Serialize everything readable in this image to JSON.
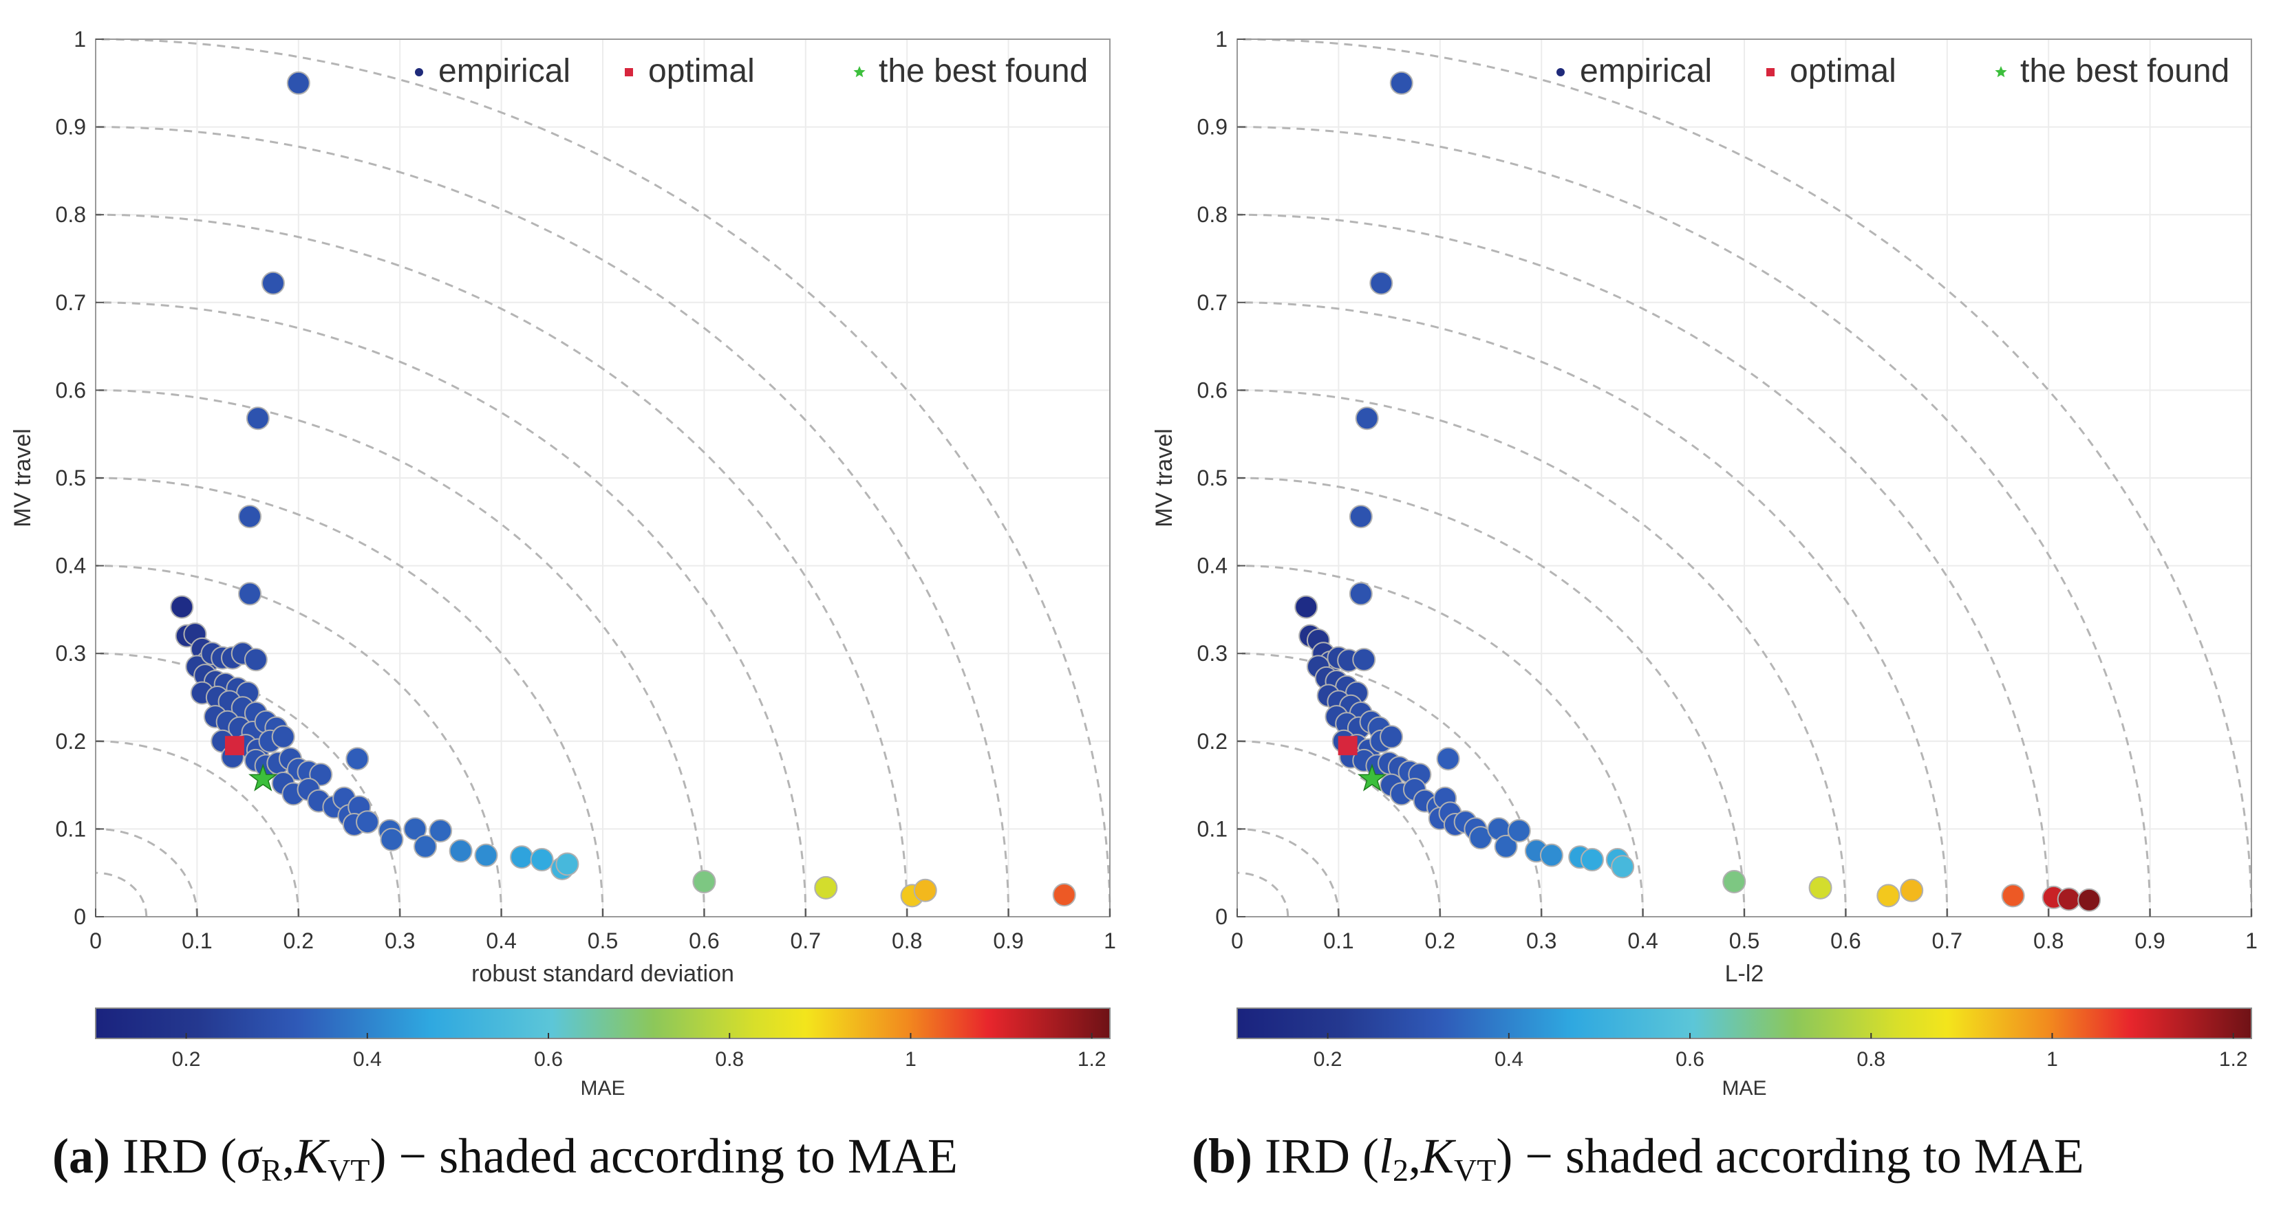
{
  "chart_data": [
    {
      "type": "scatter",
      "title": "",
      "xlabel": "robust standard deviation",
      "ylabel": "MV travel",
      "xlim": [
        0,
        1
      ],
      "ylim": [
        0,
        1
      ],
      "xticks": [
        "0",
        "0.1",
        "0.2",
        "0.3",
        "0.4",
        "0.5",
        "0.6",
        "0.7",
        "0.8",
        "0.9",
        "1"
      ],
      "yticks": [
        "0",
        "0.1",
        "0.2",
        "0.3",
        "0.4",
        "0.5",
        "0.6",
        "0.7",
        "0.8",
        "0.9",
        "1"
      ],
      "grid": true,
      "reference_arcs": [
        0.05,
        0.1,
        0.2,
        0.3,
        0.4,
        0.5,
        0.6,
        0.7,
        0.8,
        0.9,
        1.0
      ],
      "legend": {
        "position": "top-right",
        "entries": [
          {
            "label": "empirical",
            "marker": "circle",
            "color": "#1f2a7a"
          },
          {
            "label": "optimal",
            "marker": "square",
            "color": "#d7263d"
          },
          {
            "label": "the best found",
            "marker": "star",
            "color": "#3cbf3c"
          }
        ]
      },
      "series": [
        {
          "name": "empirical",
          "points": [
            {
              "x": 0.2,
              "y": 0.95,
              "mae": 0.3
            },
            {
              "x": 0.175,
              "y": 0.722,
              "mae": 0.3
            },
            {
              "x": 0.16,
              "y": 0.568,
              "mae": 0.3
            },
            {
              "x": 0.152,
              "y": 0.456,
              "mae": 0.3
            },
            {
              "x": 0.152,
              "y": 0.368,
              "mae": 0.3
            },
            {
              "x": 0.085,
              "y": 0.353,
              "mae": 0.15
            },
            {
              "x": 0.09,
              "y": 0.32,
              "mae": 0.18
            },
            {
              "x": 0.098,
              "y": 0.322,
              "mae": 0.2
            },
            {
              "x": 0.105,
              "y": 0.305,
              "mae": 0.22
            },
            {
              "x": 0.11,
              "y": 0.29,
              "mae": 0.24
            },
            {
              "x": 0.1,
              "y": 0.285,
              "mae": 0.24
            },
            {
              "x": 0.115,
              "y": 0.3,
              "mae": 0.25
            },
            {
              "x": 0.125,
              "y": 0.295,
              "mae": 0.26
            },
            {
              "x": 0.135,
              "y": 0.295,
              "mae": 0.26
            },
            {
              "x": 0.145,
              "y": 0.3,
              "mae": 0.27
            },
            {
              "x": 0.158,
              "y": 0.293,
              "mae": 0.28
            },
            {
              "x": 0.108,
              "y": 0.275,
              "mae": 0.24
            },
            {
              "x": 0.118,
              "y": 0.268,
              "mae": 0.25
            },
            {
              "x": 0.128,
              "y": 0.265,
              "mae": 0.26
            },
            {
              "x": 0.14,
              "y": 0.26,
              "mae": 0.27
            },
            {
              "x": 0.15,
              "y": 0.255,
              "mae": 0.28
            },
            {
              "x": 0.105,
              "y": 0.255,
              "mae": 0.25
            },
            {
              "x": 0.12,
              "y": 0.25,
              "mae": 0.26
            },
            {
              "x": 0.132,
              "y": 0.245,
              "mae": 0.27
            },
            {
              "x": 0.145,
              "y": 0.238,
              "mae": 0.28
            },
            {
              "x": 0.158,
              "y": 0.232,
              "mae": 0.29
            },
            {
              "x": 0.118,
              "y": 0.228,
              "mae": 0.27
            },
            {
              "x": 0.13,
              "y": 0.222,
              "mae": 0.28
            },
            {
              "x": 0.142,
              "y": 0.215,
              "mae": 0.28
            },
            {
              "x": 0.155,
              "y": 0.21,
              "mae": 0.29
            },
            {
              "x": 0.168,
              "y": 0.222,
              "mae": 0.3
            },
            {
              "x": 0.178,
              "y": 0.215,
              "mae": 0.3
            },
            {
              "x": 0.125,
              "y": 0.2,
              "mae": 0.28
            },
            {
              "x": 0.148,
              "y": 0.195,
              "mae": 0.29
            },
            {
              "x": 0.16,
              "y": 0.19,
              "mae": 0.29
            },
            {
              "x": 0.172,
              "y": 0.2,
              "mae": 0.3
            },
            {
              "x": 0.185,
              "y": 0.205,
              "mae": 0.3
            },
            {
              "x": 0.135,
              "y": 0.182,
              "mae": 0.29
            },
            {
              "x": 0.158,
              "y": 0.178,
              "mae": 0.3
            },
            {
              "x": 0.168,
              "y": 0.172,
              "mae": 0.3
            },
            {
              "x": 0.18,
              "y": 0.175,
              "mae": 0.3
            },
            {
              "x": 0.192,
              "y": 0.18,
              "mae": 0.3
            },
            {
              "x": 0.2,
              "y": 0.168,
              "mae": 0.31
            },
            {
              "x": 0.21,
              "y": 0.165,
              "mae": 0.31
            },
            {
              "x": 0.222,
              "y": 0.162,
              "mae": 0.31
            },
            {
              "x": 0.185,
              "y": 0.152,
              "mae": 0.3
            },
            {
              "x": 0.195,
              "y": 0.14,
              "mae": 0.31
            },
            {
              "x": 0.21,
              "y": 0.145,
              "mae": 0.31
            },
            {
              "x": 0.22,
              "y": 0.132,
              "mae": 0.31
            },
            {
              "x": 0.235,
              "y": 0.125,
              "mae": 0.32
            },
            {
              "x": 0.245,
              "y": 0.135,
              "mae": 0.32
            },
            {
              "x": 0.25,
              "y": 0.115,
              "mae": 0.32
            },
            {
              "x": 0.26,
              "y": 0.125,
              "mae": 0.32
            },
            {
              "x": 0.255,
              "y": 0.105,
              "mae": 0.32
            },
            {
              "x": 0.268,
              "y": 0.108,
              "mae": 0.33
            },
            {
              "x": 0.258,
              "y": 0.18,
              "mae": 0.33
            },
            {
              "x": 0.29,
              "y": 0.098,
              "mae": 0.34
            },
            {
              "x": 0.292,
              "y": 0.088,
              "mae": 0.34
            },
            {
              "x": 0.315,
              "y": 0.1,
              "mae": 0.34
            },
            {
              "x": 0.325,
              "y": 0.08,
              "mae": 0.35
            },
            {
              "x": 0.34,
              "y": 0.098,
              "mae": 0.35
            },
            {
              "x": 0.36,
              "y": 0.075,
              "mae": 0.4
            },
            {
              "x": 0.385,
              "y": 0.07,
              "mae": 0.42
            },
            {
              "x": 0.42,
              "y": 0.068,
              "mae": 0.46
            },
            {
              "x": 0.44,
              "y": 0.065,
              "mae": 0.48
            },
            {
              "x": 0.46,
              "y": 0.055,
              "mae": 0.52
            },
            {
              "x": 0.465,
              "y": 0.06,
              "mae": 0.54
            },
            {
              "x": 0.6,
              "y": 0.04,
              "mae": 0.68
            },
            {
              "x": 0.72,
              "y": 0.033,
              "mae": 0.82
            },
            {
              "x": 0.805,
              "y": 0.024,
              "mae": 0.92
            },
            {
              "x": 0.818,
              "y": 0.03,
              "mae": 0.94
            },
            {
              "x": 0.955,
              "y": 0.025,
              "mae": 1.04
            }
          ]
        },
        {
          "name": "optimal",
          "points": [
            {
              "x": 0.137,
              "y": 0.195
            }
          ]
        },
        {
          "name": "the best found",
          "points": [
            {
              "x": 0.165,
              "y": 0.157
            }
          ]
        }
      ],
      "colorbar": {
        "label": "MAE",
        "range": [
          0.1,
          1.22
        ],
        "ticks": [
          "0.2",
          "0.4",
          "0.6",
          "0.8",
          "1",
          "1.2"
        ],
        "colormap": "jet"
      },
      "caption": {
        "label": "(a)",
        "text_before": " IRD (",
        "var1": "σ",
        "var1_sub": "R",
        "sep": ",",
        "var2": "K",
        "var2_sub": "VT",
        "text_after": ") − shaded according to MAE"
      }
    },
    {
      "type": "scatter",
      "title": "",
      "xlabel": "L-l2",
      "ylabel": "MV travel",
      "xlim": [
        0,
        1
      ],
      "ylim": [
        0,
        1
      ],
      "xticks": [
        "0",
        "0.1",
        "0.2",
        "0.3",
        "0.4",
        "0.5",
        "0.6",
        "0.7",
        "0.8",
        "0.9",
        "1"
      ],
      "yticks": [
        "0",
        "0.1",
        "0.2",
        "0.3",
        "0.4",
        "0.5",
        "0.6",
        "0.7",
        "0.8",
        "0.9",
        "1"
      ],
      "grid": true,
      "reference_arcs": [
        0.05,
        0.1,
        0.2,
        0.3,
        0.4,
        0.5,
        0.6,
        0.7,
        0.8,
        0.9,
        1.0
      ],
      "legend": {
        "position": "top-right",
        "entries": [
          {
            "label": "empirical",
            "marker": "circle",
            "color": "#1f2a7a"
          },
          {
            "label": "optimal",
            "marker": "square",
            "color": "#d7263d"
          },
          {
            "label": "the best found",
            "marker": "star",
            "color": "#3cbf3c"
          }
        ]
      },
      "series": [
        {
          "name": "empirical",
          "points": [
            {
              "x": 0.162,
              "y": 0.95,
              "mae": 0.3
            },
            {
              "x": 0.142,
              "y": 0.722,
              "mae": 0.3
            },
            {
              "x": 0.128,
              "y": 0.568,
              "mae": 0.3
            },
            {
              "x": 0.122,
              "y": 0.456,
              "mae": 0.3
            },
            {
              "x": 0.122,
              "y": 0.368,
              "mae": 0.3
            },
            {
              "x": 0.068,
              "y": 0.353,
              "mae": 0.15
            },
            {
              "x": 0.072,
              "y": 0.32,
              "mae": 0.18
            },
            {
              "x": 0.08,
              "y": 0.315,
              "mae": 0.2
            },
            {
              "x": 0.085,
              "y": 0.3,
              "mae": 0.22
            },
            {
              "x": 0.092,
              "y": 0.29,
              "mae": 0.24
            },
            {
              "x": 0.08,
              "y": 0.285,
              "mae": 0.24
            },
            {
              "x": 0.1,
              "y": 0.295,
              "mae": 0.25
            },
            {
              "x": 0.11,
              "y": 0.292,
              "mae": 0.26
            },
            {
              "x": 0.125,
              "y": 0.293,
              "mae": 0.28
            },
            {
              "x": 0.088,
              "y": 0.272,
              "mae": 0.24
            },
            {
              "x": 0.098,
              "y": 0.268,
              "mae": 0.25
            },
            {
              "x": 0.108,
              "y": 0.262,
              "mae": 0.26
            },
            {
              "x": 0.118,
              "y": 0.255,
              "mae": 0.27
            },
            {
              "x": 0.09,
              "y": 0.252,
              "mae": 0.25
            },
            {
              "x": 0.1,
              "y": 0.245,
              "mae": 0.26
            },
            {
              "x": 0.112,
              "y": 0.24,
              "mae": 0.27
            },
            {
              "x": 0.122,
              "y": 0.232,
              "mae": 0.28
            },
            {
              "x": 0.098,
              "y": 0.228,
              "mae": 0.27
            },
            {
              "x": 0.108,
              "y": 0.22,
              "mae": 0.28
            },
            {
              "x": 0.12,
              "y": 0.215,
              "mae": 0.28
            },
            {
              "x": 0.132,
              "y": 0.222,
              "mae": 0.29
            },
            {
              "x": 0.14,
              "y": 0.215,
              "mae": 0.3
            },
            {
              "x": 0.105,
              "y": 0.2,
              "mae": 0.28
            },
            {
              "x": 0.118,
              "y": 0.195,
              "mae": 0.29
            },
            {
              "x": 0.13,
              "y": 0.19,
              "mae": 0.29
            },
            {
              "x": 0.142,
              "y": 0.2,
              "mae": 0.3
            },
            {
              "x": 0.152,
              "y": 0.205,
              "mae": 0.3
            },
            {
              "x": 0.112,
              "y": 0.182,
              "mae": 0.29
            },
            {
              "x": 0.125,
              "y": 0.178,
              "mae": 0.3
            },
            {
              "x": 0.138,
              "y": 0.172,
              "mae": 0.3
            },
            {
              "x": 0.15,
              "y": 0.175,
              "mae": 0.3
            },
            {
              "x": 0.16,
              "y": 0.17,
              "mae": 0.3
            },
            {
              "x": 0.17,
              "y": 0.165,
              "mae": 0.31
            },
            {
              "x": 0.18,
              "y": 0.162,
              "mae": 0.31
            },
            {
              "x": 0.152,
              "y": 0.15,
              "mae": 0.3
            },
            {
              "x": 0.162,
              "y": 0.14,
              "mae": 0.31
            },
            {
              "x": 0.175,
              "y": 0.145,
              "mae": 0.31
            },
            {
              "x": 0.185,
              "y": 0.132,
              "mae": 0.31
            },
            {
              "x": 0.198,
              "y": 0.125,
              "mae": 0.32
            },
            {
              "x": 0.205,
              "y": 0.135,
              "mae": 0.32
            },
            {
              "x": 0.2,
              "y": 0.112,
              "mae": 0.32
            },
            {
              "x": 0.21,
              "y": 0.118,
              "mae": 0.32
            },
            {
              "x": 0.208,
              "y": 0.18,
              "mae": 0.33
            },
            {
              "x": 0.215,
              "y": 0.105,
              "mae": 0.32
            },
            {
              "x": 0.225,
              "y": 0.108,
              "mae": 0.33
            },
            {
              "x": 0.235,
              "y": 0.1,
              "mae": 0.33
            },
            {
              "x": 0.24,
              "y": 0.09,
              "mae": 0.34
            },
            {
              "x": 0.258,
              "y": 0.1,
              "mae": 0.34
            },
            {
              "x": 0.265,
              "y": 0.08,
              "mae": 0.35
            },
            {
              "x": 0.278,
              "y": 0.098,
              "mae": 0.35
            },
            {
              "x": 0.295,
              "y": 0.075,
              "mae": 0.4
            },
            {
              "x": 0.31,
              "y": 0.07,
              "mae": 0.42
            },
            {
              "x": 0.338,
              "y": 0.068,
              "mae": 0.46
            },
            {
              "x": 0.35,
              "y": 0.065,
              "mae": 0.48
            },
            {
              "x": 0.375,
              "y": 0.065,
              "mae": 0.5
            },
            {
              "x": 0.38,
              "y": 0.057,
              "mae": 0.54
            },
            {
              "x": 0.49,
              "y": 0.04,
              "mae": 0.68
            },
            {
              "x": 0.575,
              "y": 0.033,
              "mae": 0.82
            },
            {
              "x": 0.642,
              "y": 0.024,
              "mae": 0.92
            },
            {
              "x": 0.665,
              "y": 0.03,
              "mae": 0.94
            },
            {
              "x": 0.765,
              "y": 0.024,
              "mae": 1.04
            },
            {
              "x": 0.805,
              "y": 0.022,
              "mae": 1.12
            },
            {
              "x": 0.82,
              "y": 0.02,
              "mae": 1.16
            },
            {
              "x": 0.84,
              "y": 0.019,
              "mae": 1.2
            }
          ]
        },
        {
          "name": "optimal",
          "points": [
            {
              "x": 0.109,
              "y": 0.195
            }
          ]
        },
        {
          "name": "the best found",
          "points": [
            {
              "x": 0.133,
              "y": 0.157
            }
          ]
        }
      ],
      "colorbar": {
        "label": "MAE",
        "range": [
          0.1,
          1.22
        ],
        "ticks": [
          "0.2",
          "0.4",
          "0.6",
          "0.8",
          "1",
          "1.2"
        ],
        "colormap": "jet"
      },
      "caption": {
        "label": "(b)",
        "text_before": " IRD (",
        "var1": "l",
        "var1_sub": "2",
        "sep": ",",
        "var2": "K",
        "var2_sub": "VT",
        "text_after": ") − shaded according to MAE"
      }
    }
  ]
}
